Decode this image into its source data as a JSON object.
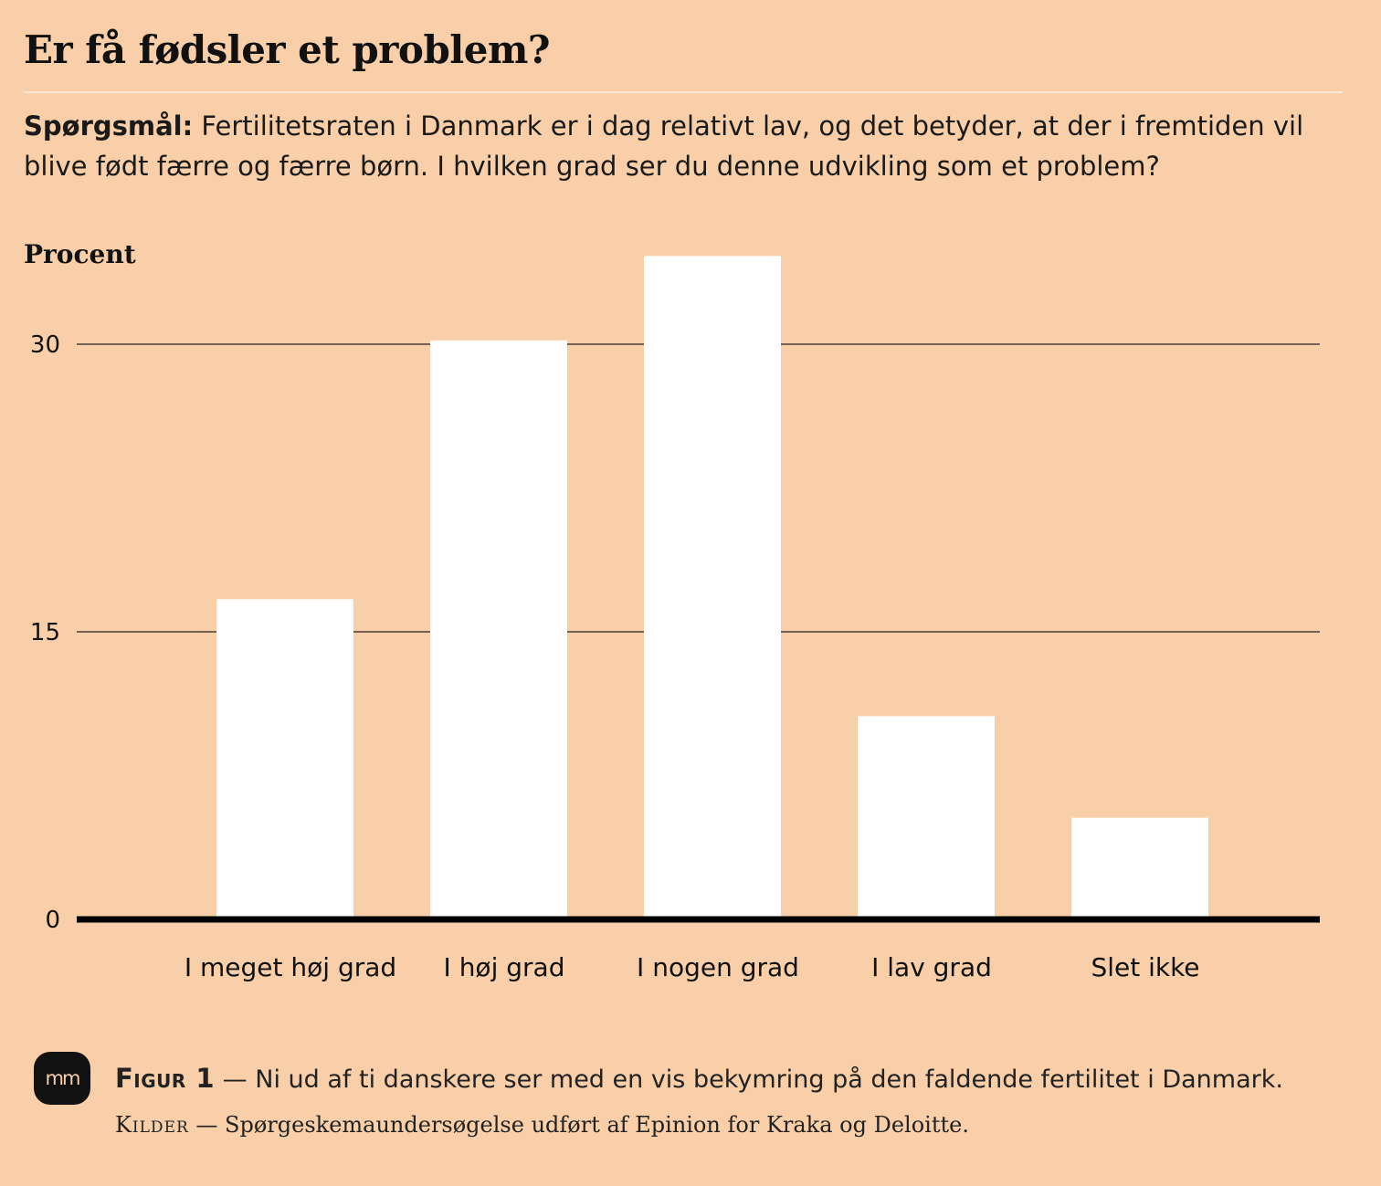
{
  "title": "Er få fødsler et problem?",
  "question": {
    "label": "Spørgsmål:",
    "text": " Fertilitetsraten i Danmark er i dag relativt lav, og det betyder, at der i fremtiden vil blive født færre og færre børn. I hvilken grad ser du denne udvikling som et problem?"
  },
  "chart_data": {
    "type": "bar",
    "ylabel": "Procent",
    "categories": [
      "I meget høj grad",
      "I høj grad",
      "I nogen grad",
      "I lav grad",
      "Slet ikke"
    ],
    "values": [
      16.7,
      30.2,
      34.6,
      10.6,
      5.3
    ],
    "ylim": [
      0,
      35
    ],
    "yticks": [
      0,
      15,
      30
    ],
    "grid": true,
    "colors": {
      "bar": "#ffffff",
      "gridline": "#4a3d33",
      "axis": "#000000",
      "background": "#f8cfa8"
    }
  },
  "logo": {
    "text": "mm"
  },
  "caption": {
    "label": "Figur 1",
    "text": " — Ni ud af ti danskere ser med en vis bekymring på den faldende fertilitet i Danmark."
  },
  "sources": {
    "label": "Kilder",
    "text": " — Spørgeskemaundersøgelse udført af Epinion for Kraka og Deloitte."
  }
}
